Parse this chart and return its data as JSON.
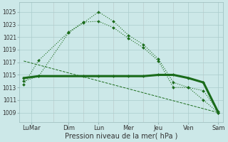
{
  "background_color": "#cce8e8",
  "grid_color": "#aacccc",
  "line_color": "#1a6b1a",
  "xlabel": "Pression niveau de la mer( hPa )",
  "xlabel_fontsize": 7,
  "yticks": [
    1009,
    1011,
    1013,
    1015,
    1017,
    1019,
    1021,
    1023,
    1025
  ],
  "ytick_fontsize": 5.5,
  "xtick_fontsize": 6,
  "ylim_min": 1007.5,
  "ylim_max": 1026.5,
  "xlim_min": -0.3,
  "xlim_max": 13.3,
  "day_labels": [
    "LuMar",
    "Dim",
    "Lun",
    "Mer",
    "Jeu",
    "Ven",
    "Sam"
  ],
  "day_positions": [
    0.5,
    3,
    5,
    7,
    9,
    11,
    13
  ],
  "vline_positions": [
    2,
    4,
    6,
    8,
    10,
    12
  ],
  "line1_x": [
    0,
    1,
    3,
    4,
    5,
    6,
    7,
    8,
    9,
    10,
    11,
    12,
    13
  ],
  "line1_y": [
    1014.0,
    1014.8,
    1021.7,
    1023.3,
    1025.0,
    1023.5,
    1021.3,
    1019.8,
    1017.5,
    1013.8,
    1013.0,
    1011.0,
    1009.0
  ],
  "line2_x": [
    0,
    1,
    3,
    4,
    5,
    6,
    7,
    8,
    9,
    10,
    11,
    12,
    13
  ],
  "line2_y": [
    1013.5,
    1017.3,
    1021.8,
    1023.4,
    1023.5,
    1022.5,
    1020.8,
    1019.3,
    1017.2,
    1013.0,
    1013.0,
    1012.5,
    1009.2
  ],
  "line3_x": [
    0,
    13
  ],
  "line3_y": [
    1017.2,
    1009.0
  ],
  "line4_x": [
    0,
    1,
    4,
    5,
    6,
    7,
    8,
    9,
    10,
    11,
    12,
    13
  ],
  "line4_y": [
    1014.5,
    1014.8,
    1014.8,
    1014.8,
    1014.8,
    1014.8,
    1014.8,
    1015.0,
    1015.0,
    1014.5,
    1013.8,
    1009.0
  ]
}
